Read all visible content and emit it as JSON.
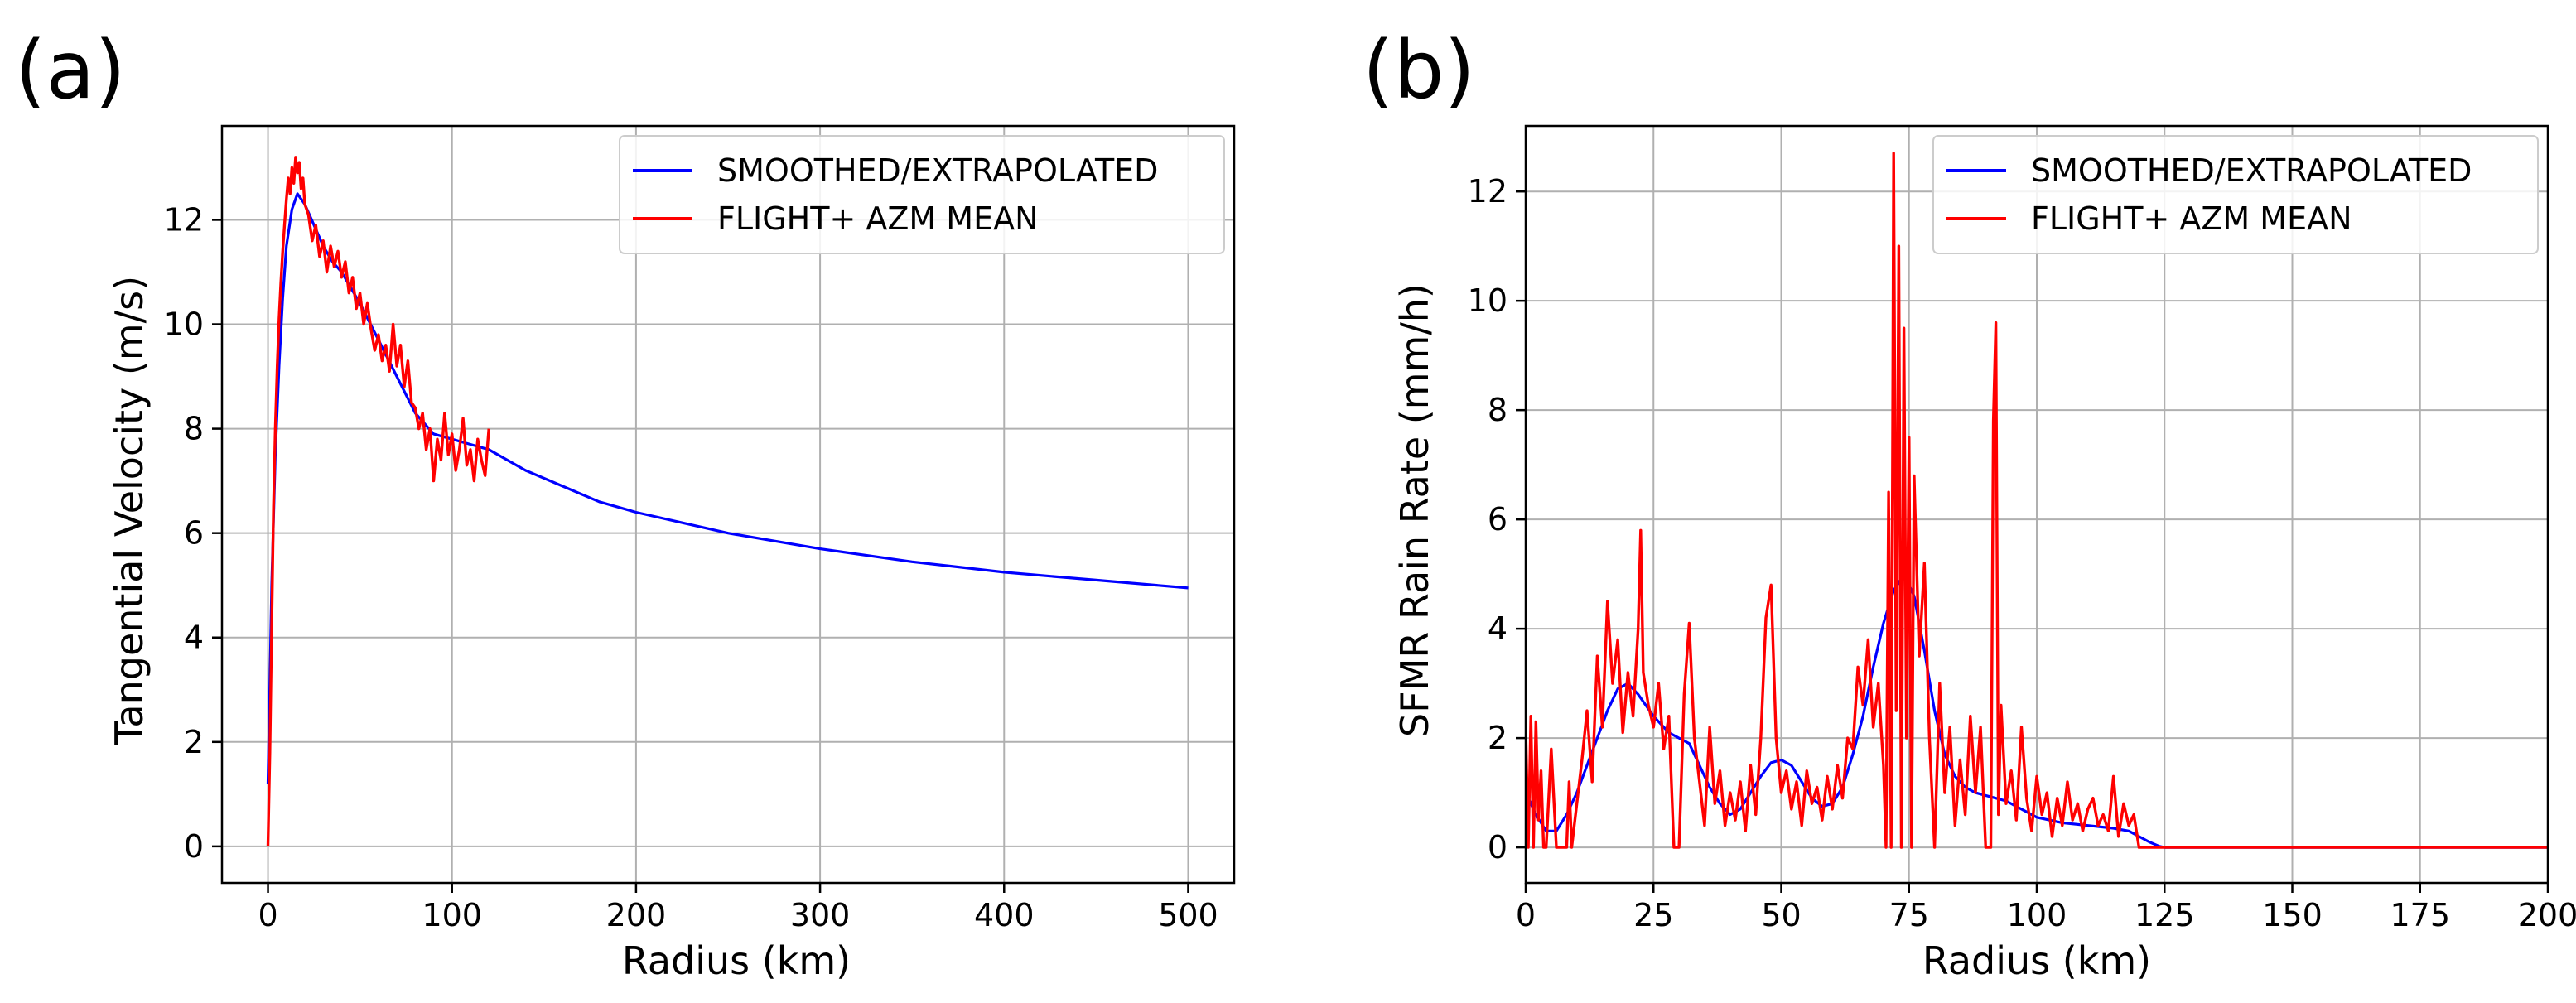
{
  "chart_data": [
    {
      "panel": "(a)",
      "type": "line",
      "xlabel": "Radius (km)",
      "ylabel": "Tangential Velocity (m/s)",
      "xlim": [
        -25,
        525
      ],
      "ylim": [
        -0.7,
        13.8
      ],
      "xticks": [
        0,
        100,
        200,
        300,
        400,
        500
      ],
      "yticks": [
        0,
        2,
        4,
        6,
        8,
        10,
        12
      ],
      "grid": true,
      "legend_position": "top-right",
      "series": [
        {
          "name": "SMOOTHED/EXTRAPOLATED",
          "color": "#0000ff",
          "x": [
            0,
            2,
            4,
            6,
            8,
            10,
            13,
            16,
            20,
            25,
            30,
            35,
            40,
            50,
            60,
            70,
            80,
            90,
            100,
            110,
            120,
            140,
            160,
            180,
            200,
            250,
            300,
            350,
            400,
            450,
            500
          ],
          "y": [
            1.2,
            5.0,
            7.5,
            9.2,
            10.5,
            11.5,
            12.2,
            12.5,
            12.3,
            11.9,
            11.5,
            11.2,
            11.0,
            10.4,
            9.7,
            9.0,
            8.3,
            7.9,
            7.8,
            7.7,
            7.6,
            7.2,
            6.9,
            6.6,
            6.4,
            6.0,
            5.7,
            5.45,
            5.25,
            5.1,
            4.95
          ]
        },
        {
          "name": "FLIGHT+ AZM MEAN",
          "color": "#ff0000",
          "x": [
            0,
            1,
            2,
            3,
            4,
            5,
            6,
            7,
            8,
            9,
            10,
            11,
            12,
            13,
            14,
            15,
            16,
            17,
            18,
            19,
            20,
            22,
            24,
            26,
            28,
            30,
            32,
            34,
            36,
            38,
            40,
            42,
            44,
            46,
            48,
            50,
            52,
            54,
            56,
            58,
            60,
            62,
            64,
            66,
            68,
            70,
            72,
            74,
            76,
            78,
            80,
            82,
            84,
            86,
            88,
            90,
            92,
            94,
            96,
            98,
            100,
            102,
            104,
            106,
            108,
            110,
            112,
            114,
            116,
            118,
            120
          ],
          "y": [
            0,
            1.8,
            4.2,
            6.5,
            8.0,
            9.2,
            10.1,
            10.8,
            11.4,
            11.9,
            12.4,
            12.8,
            12.5,
            13.0,
            12.7,
            13.2,
            12.9,
            13.1,
            12.6,
            12.8,
            12.3,
            12.1,
            11.6,
            11.9,
            11.3,
            11.6,
            11.0,
            11.5,
            11.1,
            11.4,
            10.9,
            11.2,
            10.6,
            10.9,
            10.3,
            10.6,
            10.0,
            10.4,
            9.9,
            9.5,
            9.8,
            9.3,
            9.6,
            9.1,
            10.0,
            9.2,
            9.6,
            8.8,
            9.3,
            8.5,
            8.4,
            8.0,
            8.3,
            7.6,
            8.0,
            7.0,
            7.8,
            7.4,
            8.3,
            7.5,
            7.9,
            7.2,
            7.6,
            8.2,
            7.3,
            7.6,
            7.0,
            7.8,
            7.4,
            7.1,
            8.0
          ]
        }
      ]
    },
    {
      "panel": "(b)",
      "type": "line",
      "xlabel": "Radius (km)",
      "ylabel": "SFMR Rain Rate (mm/h)",
      "xlim": [
        0,
        200
      ],
      "ylim": [
        -0.65,
        13.2
      ],
      "xticks": [
        0,
        25,
        50,
        75,
        100,
        125,
        150,
        175,
        200
      ],
      "yticks": [
        0,
        2,
        4,
        6,
        8,
        10,
        12
      ],
      "grid": true,
      "legend_position": "top-right",
      "series": [
        {
          "name": "SMOOTHED/EXTRAPOLATED",
          "color": "#0000ff",
          "x": [
            0,
            2,
            4,
            6,
            8,
            10,
            12,
            14,
            16,
            18,
            20,
            22,
            25,
            28,
            30,
            32,
            34,
            36,
            38,
            40,
            42,
            44,
            46,
            48,
            50,
            52,
            54,
            56,
            58,
            60,
            62,
            64,
            66,
            68,
            70,
            72,
            74,
            76,
            78,
            80,
            82,
            84,
            86,
            88,
            90,
            92,
            94,
            96,
            98,
            100,
            105,
            110,
            115,
            118,
            120,
            122,
            124,
            125,
            150,
            175,
            200
          ],
          "y": [
            1.0,
            0.6,
            0.3,
            0.3,
            0.6,
            1.0,
            1.5,
            2.0,
            2.5,
            2.9,
            3.0,
            2.8,
            2.4,
            2.1,
            2.0,
            1.9,
            1.5,
            1.1,
            0.8,
            0.6,
            0.7,
            1.0,
            1.3,
            1.55,
            1.6,
            1.5,
            1.2,
            0.9,
            0.75,
            0.8,
            1.1,
            1.7,
            2.4,
            3.3,
            4.1,
            4.7,
            5.0,
            4.6,
            3.6,
            2.5,
            1.7,
            1.3,
            1.1,
            1.0,
            0.95,
            0.9,
            0.85,
            0.75,
            0.65,
            0.55,
            0.45,
            0.4,
            0.35,
            0.3,
            0.2,
            0.1,
            0.02,
            0,
            0,
            0,
            0
          ]
        },
        {
          "name": "FLIGHT+ AZM MEAN",
          "color": "#ff0000",
          "x": [
            0,
            0.5,
            1,
            1.5,
            2,
            2.5,
            3,
            3.5,
            4,
            5,
            6,
            7,
            8,
            8.5,
            9,
            10,
            11,
            12,
            13,
            14,
            15,
            16,
            17,
            18,
            19,
            20,
            21,
            22,
            22.5,
            23,
            24,
            25,
            26,
            27,
            28,
            29,
            30,
            31,
            32,
            33,
            34,
            35,
            36,
            37,
            38,
            39,
            40,
            41,
            42,
            43,
            44,
            45,
            46,
            47,
            48,
            49,
            50,
            51,
            52,
            53,
            54,
            55,
            56,
            57,
            58,
            59,
            60,
            61,
            62,
            63,
            64,
            65,
            66,
            67,
            68,
            69,
            70,
            70.5,
            71,
            71.5,
            72,
            72.5,
            73,
            73.5,
            74,
            74.5,
            75,
            75.5,
            76,
            77,
            78,
            79,
            80,
            81,
            82,
            83,
            84,
            85,
            86,
            87,
            88,
            89,
            90,
            91,
            91.5,
            92,
            92.5,
            93,
            94,
            95,
            96,
            97,
            98,
            99,
            100,
            101,
            102,
            103,
            104,
            105,
            106,
            107,
            108,
            109,
            110,
            111,
            112,
            113,
            114,
            115,
            116,
            117,
            118,
            119,
            120,
            125,
            150,
            175,
            200
          ],
          "y": [
            2.2,
            0,
            2.4,
            0,
            2.3,
            0.5,
            1.4,
            0,
            0,
            1.8,
            0,
            0,
            0,
            1.2,
            0,
            0.8,
            1.6,
            2.5,
            1.2,
            3.5,
            2.2,
            4.5,
            3.0,
            3.8,
            2.1,
            3.2,
            2.4,
            4.0,
            5.8,
            3.2,
            2.6,
            2.2,
            3.0,
            1.8,
            2.4,
            0,
            0,
            2.8,
            4.1,
            2.0,
            1.2,
            0.4,
            2.2,
            0.8,
            1.4,
            0.4,
            1.0,
            0.5,
            1.2,
            0.3,
            1.5,
            0.6,
            2.0,
            4.2,
            4.8,
            2.0,
            1.0,
            1.4,
            0.7,
            1.2,
            0.4,
            1.4,
            0.8,
            1.1,
            0.5,
            1.3,
            0.7,
            1.5,
            0.9,
            2.0,
            1.8,
            3.3,
            2.6,
            3.8,
            2.2,
            3.0,
            1.5,
            0,
            6.5,
            0,
            12.7,
            2.5,
            11.0,
            0,
            9.5,
            2.0,
            7.5,
            0,
            6.8,
            3.5,
            5.2,
            2.0,
            0,
            3.0,
            1.0,
            2.2,
            0.4,
            1.6,
            0.6,
            2.4,
            1.0,
            2.2,
            0,
            0,
            7.8,
            9.6,
            0.6,
            2.6,
            0.8,
            1.4,
            0.5,
            2.2,
            0.9,
            0.3,
            1.3,
            0.6,
            1.0,
            0.2,
            0.9,
            0.4,
            1.2,
            0.5,
            0.8,
            0.3,
            0.7,
            0.9,
            0.4,
            0.6,
            0.3,
            1.3,
            0.2,
            0.8,
            0.4,
            0.6,
            0,
            0,
            0,
            0,
            0
          ]
        }
      ]
    }
  ]
}
